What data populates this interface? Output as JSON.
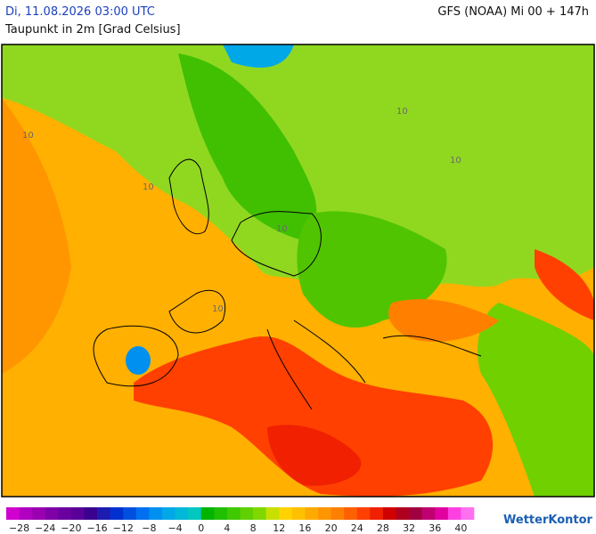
{
  "header": {
    "datetime": "Di, 11.08.2026 03:00 UTC",
    "variable": "Taupunkt in 2m [Grad Celsius]",
    "model": "GFS (NOAA) Mi 00 + 147h"
  },
  "map": {
    "contour_label": "10"
  },
  "scale": {
    "colors": [
      "#d000d0",
      "#b000c0",
      "#9a00b0",
      "#8000a8",
      "#6a00a0",
      "#5a0098",
      "#3a0090",
      "#1c1cb0",
      "#0030d0",
      "#0050e0",
      "#0070f0",
      "#0090f0",
      "#00a8e8",
      "#00b8d8",
      "#00c8c0",
      "#00b400",
      "#20c000",
      "#40c800",
      "#60d000",
      "#80d800",
      "#c8e000",
      "#ffd200",
      "#ffc000",
      "#ffaa00",
      "#ff9600",
      "#ff8000",
      "#ff6000",
      "#ff4000",
      "#f02000",
      "#d00000",
      "#b00020",
      "#a00040",
      "#c00070",
      "#e000a0",
      "#ff40e0",
      "#ff70f0"
    ],
    "labels": [
      "−28",
      "−24",
      "−20",
      "−16",
      "−12",
      "−8",
      "−4",
      "0",
      "4",
      "8",
      "12",
      "16",
      "20",
      "24",
      "28",
      "32",
      "36",
      "40"
    ]
  },
  "logo": "WetterKontor"
}
